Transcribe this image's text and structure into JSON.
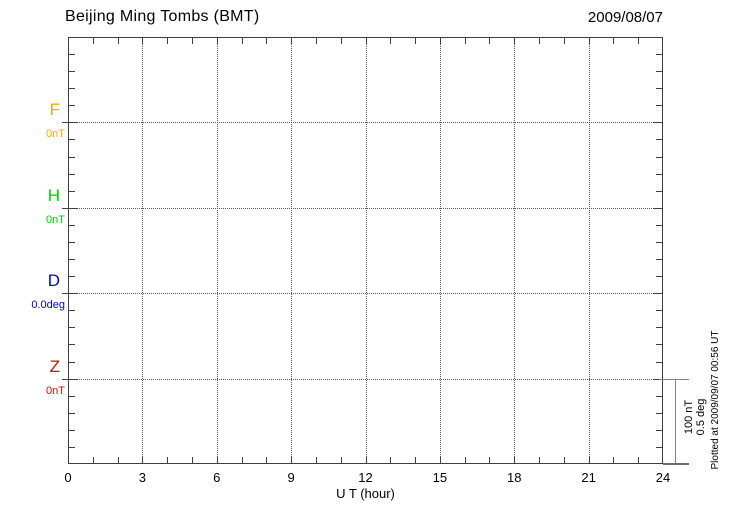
{
  "header": {
    "title": "Beijing Ming Tombs (BMT)",
    "date": "2009/08/07"
  },
  "chart_data": {
    "type": "line",
    "title": "Beijing Ming Tombs (BMT)",
    "date": "2009/08/07",
    "xlabel": "U T (hour)",
    "xlim": [
      0,
      24
    ],
    "x_ticks": [
      0,
      3,
      6,
      9,
      12,
      15,
      18,
      21,
      24
    ],
    "x_minor_tick_interval_hours": 1,
    "y_major_divisions": 5,
    "y_minor_ticks_per_division": 5,
    "grid": true,
    "grid_style": "dotted",
    "series": [
      {
        "name": "F",
        "unit_label": "0nT",
        "color": "#FFA500",
        "values": []
      },
      {
        "name": "H",
        "unit_label": "0nT",
        "color": "#00D000",
        "values": []
      },
      {
        "name": "D",
        "unit_label": "0.0deg",
        "color": "#0000DD",
        "values": []
      },
      {
        "name": "Z",
        "unit_label": "0nT",
        "color": "#EE0000",
        "values": []
      }
    ],
    "scale_bar": {
      "line1": "100 nT",
      "line2": "0.5 deg"
    },
    "footnote": "Plotted at 2009/09/07 00:56 UT"
  },
  "style_colors": {
    "frame": "#3f3f3f",
    "gridline": "#575757",
    "scale_bar": "#808080",
    "text": "#000000"
  }
}
